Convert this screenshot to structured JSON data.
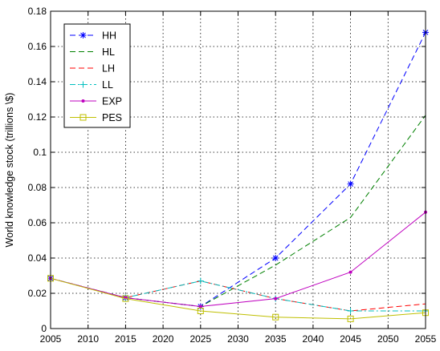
{
  "chart_data": {
    "type": "line",
    "title": "",
    "xlabel": "",
    "ylabel": "World knowledge stock (trillions \\$)",
    "xlim": [
      2005,
      2055
    ],
    "ylim": [
      0,
      0.18
    ],
    "grid": true,
    "legend_position": "top-left",
    "x_ticks": [
      2005,
      2010,
      2015,
      2020,
      2025,
      2030,
      2035,
      2040,
      2045,
      2050,
      2055
    ],
    "x_tick_labels": [
      "2005",
      "2010",
      "2015",
      "2020",
      "2025",
      "2030",
      "2035",
      "2040",
      "2045",
      "2050",
      "2055"
    ],
    "y_ticks": [
      0,
      0.02,
      0.04,
      0.06,
      0.08,
      0.1,
      0.12,
      0.14,
      0.16,
      0.18
    ],
    "y_tick_labels": [
      "0",
      "0.02",
      "0.04",
      "0.06",
      "0.08",
      "0.1",
      "0.12",
      "0.14",
      "0.16",
      "0.18"
    ],
    "x": [
      2005,
      2015,
      2025,
      2035,
      2045,
      2055
    ],
    "series": [
      {
        "name": "HH",
        "color": "#0000ff",
        "line_style": "dashed",
        "marker": "asterisk",
        "values": [
          0.0285,
          0.0175,
          0.0125,
          0.04,
          0.082,
          0.168
        ]
      },
      {
        "name": "HL",
        "color": "#008000",
        "line_style": "dashed",
        "marker": "none",
        "values": [
          0.0285,
          0.0175,
          0.0125,
          0.036,
          0.063,
          0.121
        ]
      },
      {
        "name": "LH",
        "color": "#ff0000",
        "line_style": "dashed",
        "marker": "none",
        "values": [
          0.0285,
          0.0175,
          0.027,
          0.017,
          0.01,
          0.014
        ]
      },
      {
        "name": "LL",
        "color": "#00bfbf",
        "line_style": "dash-dot",
        "marker": "plus",
        "values": [
          0.0285,
          0.0175,
          0.027,
          0.017,
          0.01,
          0.01
        ]
      },
      {
        "name": "EXP",
        "color": "#bf00bf",
        "line_style": "solid",
        "marker": "dot",
        "values": [
          0.0285,
          0.0175,
          0.0125,
          0.017,
          0.032,
          0.066
        ]
      },
      {
        "name": "PES",
        "color": "#bfbf00",
        "line_style": "solid",
        "marker": "square",
        "values": [
          0.0285,
          0.017,
          0.01,
          0.0065,
          0.0055,
          0.009
        ]
      }
    ]
  }
}
